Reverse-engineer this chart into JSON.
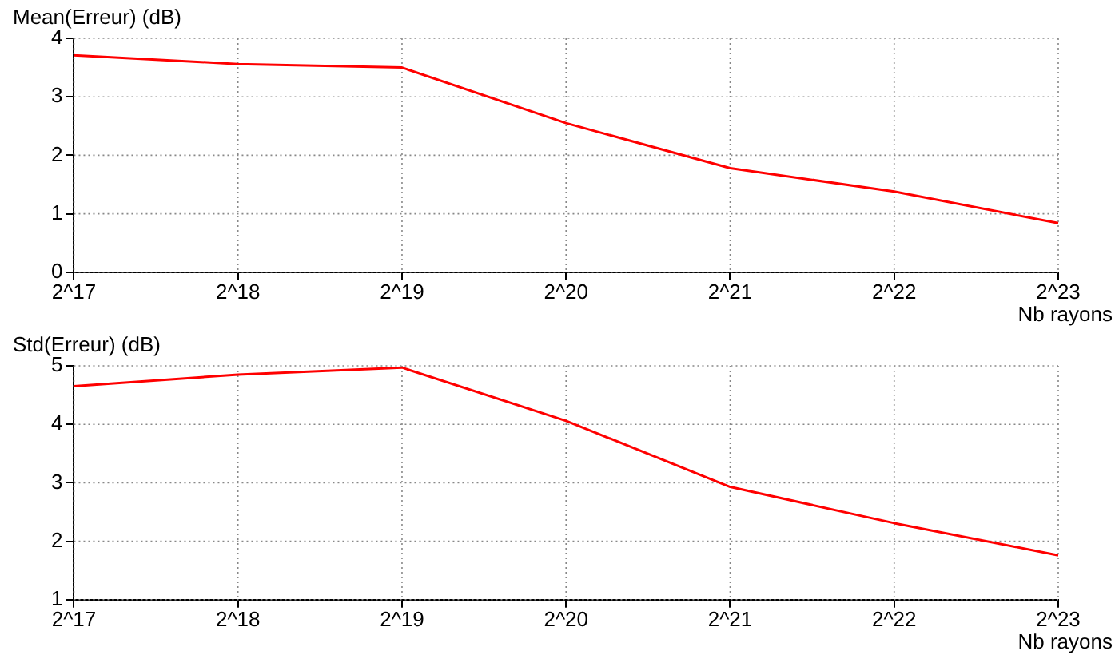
{
  "chart_data": [
    {
      "type": "line",
      "ylabel": "Mean(Erreur) (dB)",
      "xlabel": "Nb rayons",
      "categories": [
        "2^17",
        "2^18",
        "2^19",
        "2^20",
        "2^21",
        "2^22",
        "2^23"
      ],
      "series": [
        {
          "color": "#ff0000",
          "values": [
            3.71,
            3.56,
            3.5,
            2.55,
            1.78,
            1.38,
            0.84
          ]
        }
      ],
      "ylim": [
        0,
        4
      ],
      "yticks": [
        0,
        1,
        2,
        3,
        4
      ],
      "grid": true,
      "legend": false,
      "marker": "none",
      "line_style": "solid"
    },
    {
      "type": "line",
      "ylabel": "Std(Erreur) (dB)",
      "xlabel": "Nb rayons",
      "categories": [
        "2^17",
        "2^18",
        "2^19",
        "2^20",
        "2^21",
        "2^22",
        "2^23"
      ],
      "series": [
        {
          "color": "#ff0000",
          "values": [
            4.65,
            4.85,
            4.97,
            4.06,
            2.93,
            2.31,
            1.76
          ]
        }
      ],
      "ylim": [
        1,
        5
      ],
      "yticks": [
        1,
        2,
        3,
        4,
        5
      ],
      "grid": true,
      "legend": false,
      "marker": "none",
      "line_style": "solid"
    }
  ]
}
